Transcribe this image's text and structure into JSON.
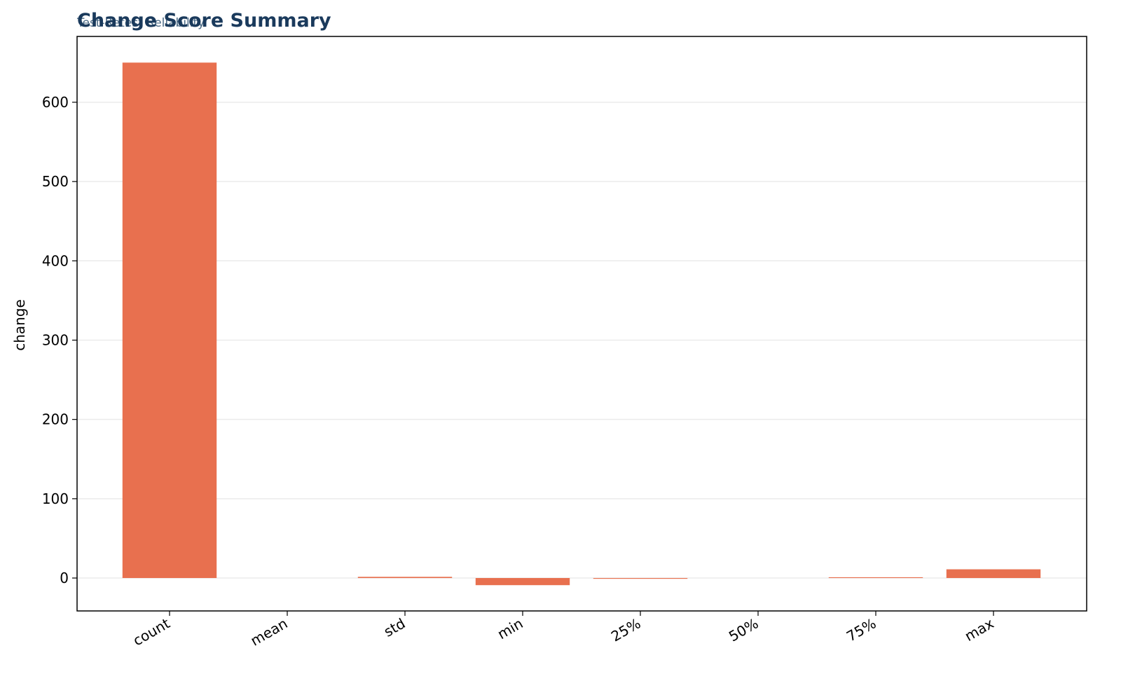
{
  "chart_data": {
    "type": "bar",
    "title": "Change Score Summary",
    "subtitle": "Test-Retest Reliability",
    "y_label": "change",
    "categories": [
      "count",
      "mean",
      "std",
      "min",
      "25%",
      "50%",
      "75%",
      "max"
    ],
    "values": [
      650,
      0,
      1.5,
      -9,
      -1,
      0,
      1,
      11
    ],
    "color": "#e8704f",
    "ylim": [
      -41.5,
      683
    ],
    "yticks": [
      0,
      100,
      200,
      300,
      400,
      500,
      600
    ],
    "grid": true
  }
}
